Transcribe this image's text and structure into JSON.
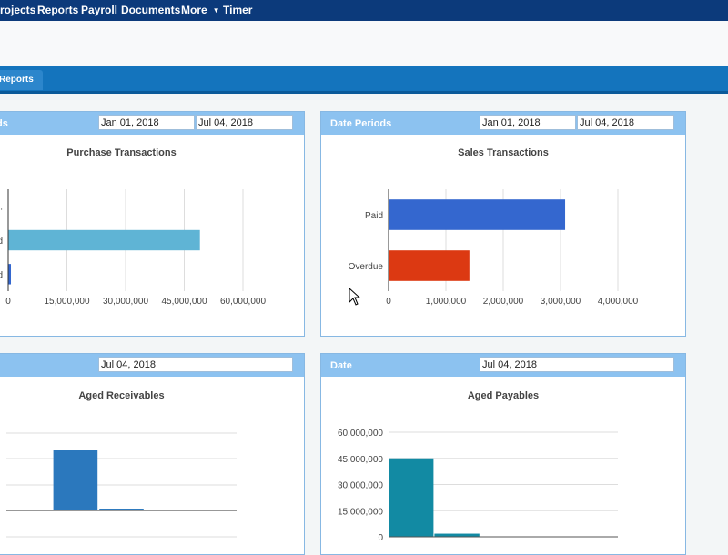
{
  "nav": {
    "items": [
      "rojects",
      "Reports",
      "Payroll",
      "Documents",
      "More",
      "Timer"
    ]
  },
  "tabs": [
    "Reports"
  ],
  "colors": {
    "nav_bg": "#0c3a7b",
    "tab_bar": "#1474bd",
    "panel_header": "#8cc2f0",
    "bar_cyan": "#5fb4d5",
    "bar_blue": "#3467cf",
    "bar_red": "#dc3912",
    "bar_steel": "#2b78bd",
    "bar_teal": "#128aa3"
  },
  "panels": {
    "purchase": {
      "header_label": "ds",
      "date_from": "Jan 01, 2018",
      "date_to": "Jul 04, 2018",
      "chart_title": "Purchase Transactions",
      "category_labels": [
        "...",
        "d",
        "d"
      ]
    },
    "sales": {
      "header_label": "Date Periods",
      "date_from": "Jan 01, 2018",
      "date_to": "Jul 04, 2018",
      "chart_title": "Sales Transactions"
    },
    "receivables": {
      "date": "Jul 04, 2018",
      "chart_title": "Aged Receivables"
    },
    "payables": {
      "header_label": "Date",
      "date": "Jul 04, 2018",
      "chart_title": "Aged Payables"
    }
  },
  "chart_data": [
    {
      "type": "bar",
      "orientation": "horizontal",
      "title": "Purchase Transactions",
      "categories": [
        "...",
        "d",
        "d"
      ],
      "values": [
        0,
        49000000,
        700000
      ],
      "xlim": [
        0,
        60000000
      ],
      "ticks": [
        0,
        15000000,
        30000000,
        45000000,
        60000000
      ],
      "tick_labels": [
        "0",
        "15,000,000",
        "30,000,000",
        "45,000,000",
        "60,000,000"
      ],
      "grid": true
    },
    {
      "type": "bar",
      "orientation": "horizontal",
      "title": "Sales Transactions",
      "categories": [
        "Paid",
        "Overdue"
      ],
      "values": [
        3080000,
        1410000
      ],
      "xlim": [
        0,
        4000000
      ],
      "ticks": [
        0,
        1000000,
        2000000,
        3000000,
        4000000
      ],
      "tick_labels": [
        "0",
        "1,000,000",
        "2,000,000",
        "3,000,000",
        "4,000,000"
      ],
      "grid": true
    },
    {
      "type": "bar",
      "orientation": "vertical",
      "title": "Aged Receivables",
      "values": [
        0,
        1.0,
        0.03,
        0,
        0
      ],
      "grid": true
    },
    {
      "type": "bar",
      "orientation": "vertical",
      "title": "Aged Payables",
      "values": [
        45000000,
        1800000,
        0,
        0,
        0
      ],
      "ylim": [
        0,
        60000000
      ],
      "ticks": [
        0,
        15000000,
        30000000,
        45000000,
        60000000
      ],
      "tick_labels": [
        "0",
        "15,000,000",
        "30,000,000",
        "45,000,000",
        "60,000,000"
      ],
      "grid": true
    }
  ]
}
